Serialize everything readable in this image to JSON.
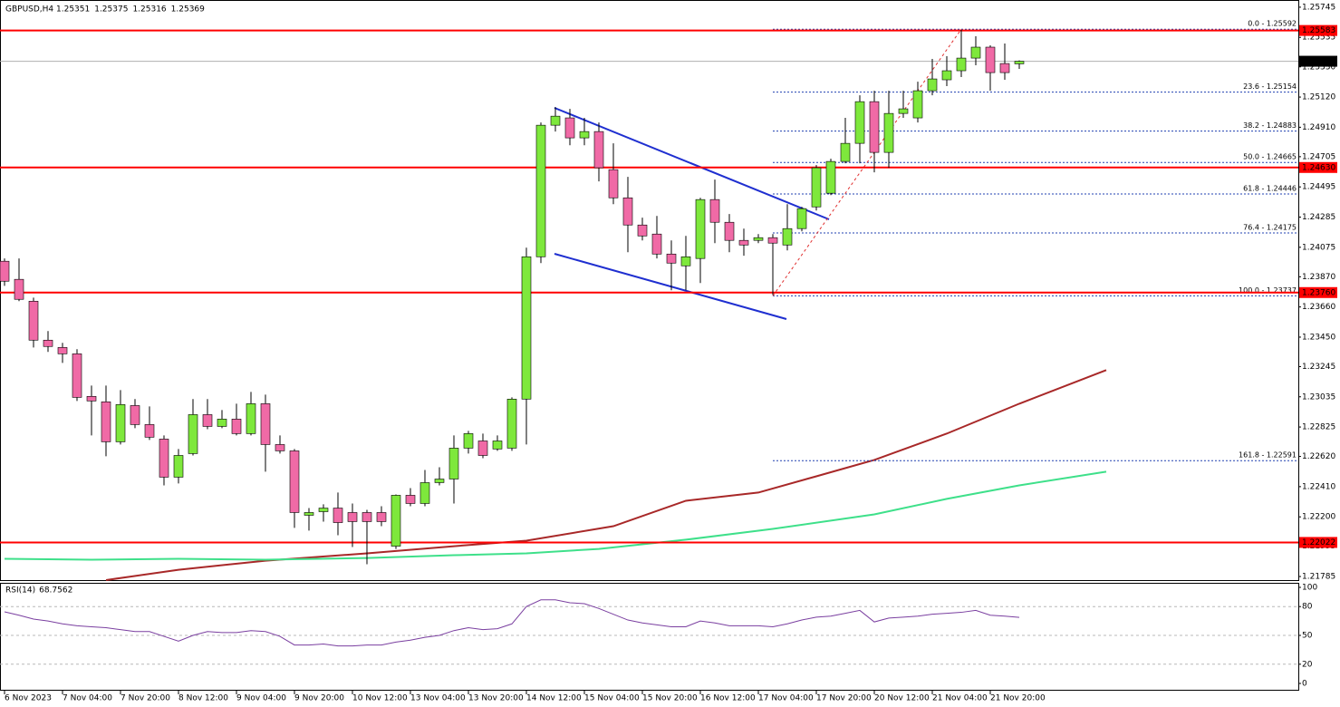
{
  "chart_data": {
    "type": "candlestick",
    "symbol": "GBPUSD,H4",
    "categories": [
      "6 Nov 2023",
      null,
      null,
      null,
      "7 Nov 04:00",
      null,
      null,
      null,
      "7 Nov 20:00",
      null,
      null,
      null,
      "8 Nov 12:00",
      null,
      null,
      null,
      "9 Nov 04:00",
      null,
      null,
      null,
      "9 Nov 20:00",
      null,
      null,
      null,
      "10 Nov 12:00",
      null,
      null,
      null,
      "13 Nov 04:00",
      null,
      null,
      null,
      "13 Nov 20:00",
      null,
      null,
      null,
      "14 Nov 12:00",
      null,
      null,
      null,
      "15 Nov 04:00",
      null,
      null,
      null,
      "15 Nov 20:00",
      null,
      null,
      null,
      "16 Nov 12:00",
      null,
      null,
      null,
      "17 Nov 04:00",
      null,
      null,
      null,
      "17 Nov 20:00",
      null,
      null,
      null,
      "20 Nov 12:00",
      null,
      null,
      null,
      "21 Nov 04:00",
      null,
      null,
      null,
      "21 Nov 20:00",
      null,
      null
    ],
    "open": [
      1.23978,
      1.23852,
      1.237,
      1.23429,
      1.23378,
      1.23334,
      1.23038,
      1.23,
      1.22722,
      1.22974,
      1.22842,
      1.22741,
      1.22476,
      1.2264,
      1.22911,
      1.22829,
      1.2288,
      1.22779,
      1.22987,
      1.22703,
      1.22659,
      1.22211,
      1.22236,
      1.22261,
      1.2223,
      1.2223,
      1.2223,
      1.21996,
      1.2235,
      1.22293,
      1.22438,
      1.22463,
      1.22678,
      1.22728,
      1.22672,
      1.22678,
      1.23019,
      1.24009,
      1.24924,
      1.24975,
      1.24836,
      1.2488,
      1.24615,
      1.24419,
      1.2423,
      1.24167,
      1.24028,
      1.23946,
      1.23997,
      1.24407,
      1.24249,
      1.24123,
      1.24123,
      1.24142,
      1.24091,
      1.24205,
      1.24356,
      1.24451,
      1.24672,
      1.24798,
      1.25088,
      1.24735,
      1.25006,
      1.24975,
      1.25164,
      1.2524,
      1.25303,
      1.25391,
      1.25467,
      1.25353,
      1.25351
    ],
    "high": [
      1.23997,
      1.23997,
      1.23725,
      1.23492,
      1.2341,
      1.23366,
      1.23113,
      1.23113,
      1.23082,
      1.23019,
      1.22968,
      1.22766,
      1.22672,
      1.23019,
      1.23019,
      1.22943,
      1.22987,
      1.23069,
      1.2305,
      1.22766,
      1.22672,
      1.22261,
      1.22287,
      1.22369,
      1.22293,
      1.22249,
      1.22274,
      1.22356,
      1.224,
      1.22526,
      1.22545,
      1.22766,
      1.22798,
      1.22779,
      1.22766,
      1.23031,
      1.24072,
      1.24943,
      1.2505,
      1.25038,
      1.24975,
      1.24943,
      1.24798,
      1.24565,
      1.24281,
      1.24293,
      1.24123,
      1.24154,
      1.24419,
      1.24546,
      1.24306,
      1.24205,
      1.24167,
      1.24167,
      1.24375,
      1.24356,
      1.24647,
      1.24691,
      1.24975,
      1.25132,
      1.25164,
      1.25164,
      1.25164,
      1.25227,
      1.25385,
      1.25404,
      1.25587,
      1.25543,
      1.2548,
      1.25492,
      1.25375
    ],
    "low": [
      1.23807,
      1.237,
      1.23378,
      1.23347,
      1.23271,
      1.23006,
      1.22766,
      1.22621,
      1.22703,
      1.22817,
      1.22735,
      1.22419,
      1.22432,
      1.22627,
      1.2281,
      1.22817,
      1.22766,
      1.22766,
      1.22514,
      1.2264,
      1.22123,
      1.22104,
      1.22167,
      1.22072,
      1.2199,
      1.2187,
      1.22135,
      1.21977,
      1.22274,
      1.22274,
      1.22419,
      1.22293,
      1.2264,
      1.22608,
      1.22659,
      1.22659,
      1.22703,
      1.23965,
      1.2488,
      1.24785,
      1.24785,
      1.24533,
      1.24375,
      1.24041,
      1.24123,
      1.23997,
      1.23776,
      1.23776,
      1.23826,
      1.24104,
      1.24041,
      1.24016,
      1.24104,
      1.23744,
      1.24053,
      1.24186,
      1.24331,
      1.24438,
      1.24659,
      1.24659,
      1.24596,
      1.24628,
      1.24975,
      1.24943,
      1.25132,
      1.25196,
      1.25259,
      1.25341,
      1.25164,
      1.2524,
      1.25316
    ],
    "close": [
      1.23839,
      1.23713,
      1.23429,
      1.23385,
      1.23334,
      1.23031,
      1.23006,
      1.22722,
      1.22981,
      1.22842,
      1.22754,
      1.22476,
      1.22627,
      1.22911,
      1.22829,
      1.2288,
      1.22779,
      1.22987,
      1.22703,
      1.22659,
      1.2223,
      1.2223,
      1.22261,
      1.2216,
      1.22167,
      1.22167,
      1.22167,
      1.2235,
      1.22293,
      1.22438,
      1.22463,
      1.22678,
      1.22779,
      1.22627,
      1.22728,
      1.23019,
      1.24009,
      1.24924,
      1.24987,
      1.24836,
      1.2488,
      1.24628,
      1.24419,
      1.2423,
      1.24154,
      1.24028,
      1.23965,
      1.24009,
      1.24407,
      1.24249,
      1.24123,
      1.24091,
      1.24142,
      1.24104,
      1.24205,
      1.24344,
      1.24628,
      1.24672,
      1.24798,
      1.25088,
      1.24735,
      1.25006,
      1.25038,
      1.25164,
      1.25246,
      1.25303,
      1.25391,
      1.25467,
      1.2529,
      1.2529,
      1.25369
    ],
    "bull_color": "#7ee83c",
    "bear_color": "#f06aa6",
    "ylim": [
      1.2176,
      1.25795
    ],
    "yticks": [
      1.25745,
      1.25535,
      {
        "value": 1.2533,
        "label": "1.25330"
      },
      {
        "value": 1.2512,
        "label": "1.25120"
      },
      {
        "value": 1.2491,
        "label": "1.24910"
      },
      1.24705,
      1.24495,
      1.24285,
      1.24075,
      {
        "value": 1.2387,
        "label": "1.23870"
      },
      {
        "value": 1.2366,
        "label": "1.23660"
      },
      {
        "value": 1.2345,
        "label": "1.23450"
      },
      1.23245,
      1.23035,
      1.22825,
      {
        "value": 1.2262,
        "label": "1.22620"
      },
      {
        "value": 1.2241,
        "label": "1.22410"
      },
      {
        "value": 1.222,
        "label": "1.22200"
      },
      1.21995,
      1.21785
    ],
    "levels": [
      1.25583,
      {
        "value": 1.2463,
        "label": "1.24630"
      },
      {
        "value": 1.2376,
        "label": "1.23760"
      },
      1.22022
    ],
    "level_color": "#ff0000",
    "fib": [
      {
        "label": "0.0 - 1.25592",
        "value": 1.25592
      },
      {
        "label": "23.6 - 1.25154",
        "value": 1.25154
      },
      {
        "label": "38.2 - 1.24883",
        "value": 1.24883
      },
      {
        "label": "50.0 - 1.24665",
        "value": 1.24665
      },
      {
        "label": "61.8 - 1.24446",
        "value": 1.24446
      },
      {
        "label": "76.4 - 1.24175",
        "value": 1.24175
      },
      {
        "label": "100.0 - 1.23737",
        "value": 1.23737
      },
      {
        "label": "161.8 - 1.22591",
        "value": 1.22591
      }
    ],
    "fib_start": 53,
    "fib_end": 66,
    "moving_averages": [
      {
        "color": "#a82828",
        "x": [
          7,
          12,
          18,
          25,
          31,
          36,
          42,
          47,
          52,
          56,
          60,
          65,
          70,
          76
        ],
        "values": [
          1.2176,
          1.21832,
          1.21895,
          1.21946,
          1.21996,
          1.22034,
          1.22135,
          1.22312,
          1.22369,
          1.22482,
          1.22596,
          1.22779,
          1.22987,
          1.23221
        ]
      },
      {
        "color": "#3ee08a",
        "x": [
          0,
          6,
          12,
          18,
          25,
          31,
          36,
          41,
          47,
          53,
          60,
          65,
          70,
          76
        ],
        "values": [
          1.21908,
          1.21902,
          1.21908,
          1.21902,
          1.21914,
          1.21933,
          1.21946,
          1.21977,
          1.22041,
          1.22116,
          1.22217,
          1.22325,
          1.22419,
          1.22514
        ]
      }
    ],
    "rsi": {
      "name": "RSI(14)",
      "color": "#7a3fa0",
      "ylim": [
        0,
        100
      ],
      "yticks": [
        100,
        80,
        50,
        20,
        0
      ],
      "levels": [
        80,
        50,
        20
      ],
      "values": [
        74.5,
        71,
        67,
        65,
        62,
        60,
        59,
        58,
        56,
        54,
        54,
        49,
        44,
        50,
        54,
        53,
        53,
        55,
        54,
        49,
        40,
        40,
        41,
        39,
        39,
        40,
        40,
        43,
        45,
        48,
        50,
        55,
        58,
        56,
        57,
        62,
        80,
        87,
        87,
        84,
        83,
        78,
        72,
        66,
        63,
        61,
        59,
        59,
        65,
        63,
        60,
        60,
        60,
        59,
        62,
        66,
        69,
        70,
        73,
        76,
        64,
        68,
        69,
        70,
        72,
        73,
        74,
        76,
        71,
        70,
        68.7562
      ]
    }
  }
}
